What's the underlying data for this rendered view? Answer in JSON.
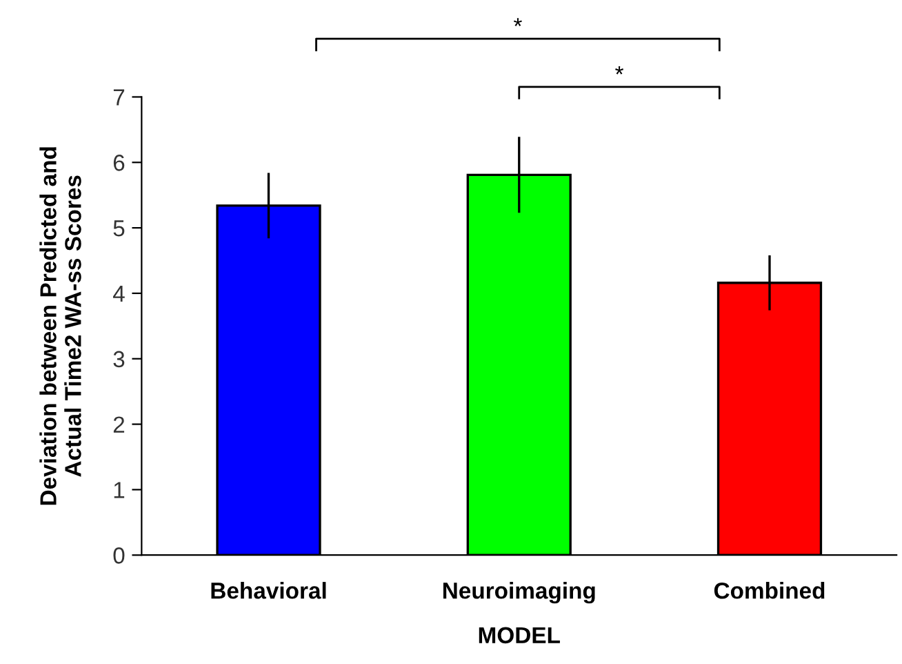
{
  "chart_data": {
    "type": "bar",
    "xlabel": "MODEL",
    "ylabel": "Deviation between Predicted and\nActual Time2 WA-ss Scores",
    "categories": [
      "Behavioral",
      "Neuroimaging",
      "Combined"
    ],
    "values": [
      5.34,
      5.81,
      4.16
    ],
    "colors": [
      "#0000ff",
      "#00ff00",
      "#ff0000"
    ],
    "errors": [
      0.5,
      0.58,
      0.42
    ],
    "ylim": [
      0,
      7
    ],
    "yticks": [
      0,
      1,
      2,
      3,
      4,
      5,
      6,
      7
    ],
    "grid": false,
    "legend": false,
    "annotations": [
      "*",
      "*"
    ]
  }
}
